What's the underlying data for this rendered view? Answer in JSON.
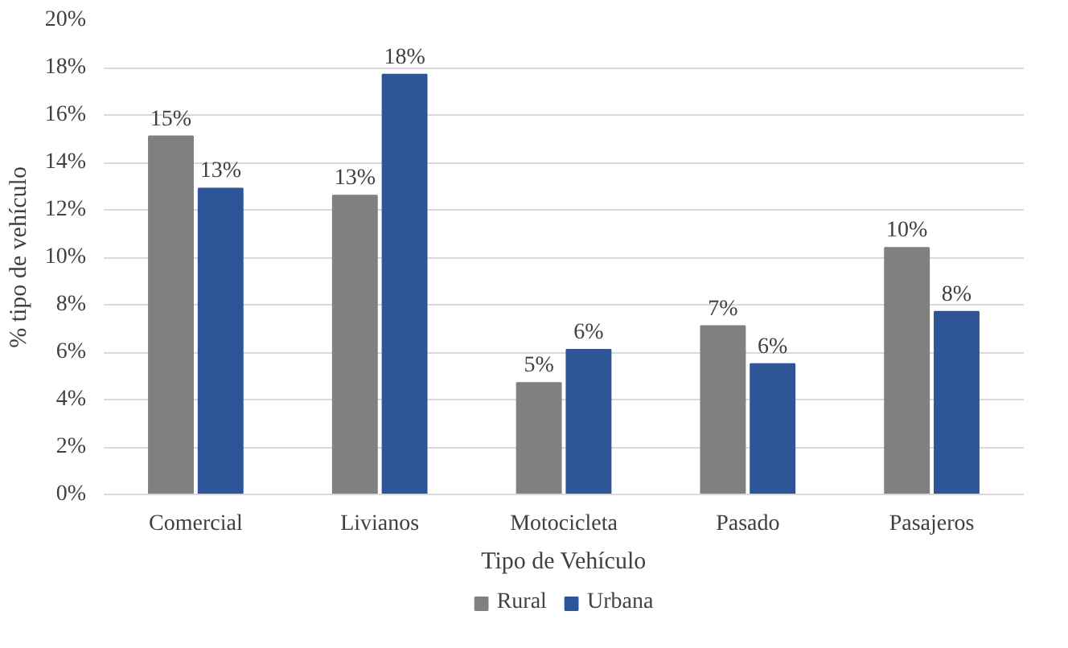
{
  "chart_data": {
    "type": "bar",
    "xlabel": "Tipo de Vehículo",
    "ylabel": "% tipo de vehículo",
    "categories": [
      "Comercial",
      "Livianos",
      "Motocicleta",
      "Pasado",
      "Pasajeros"
    ],
    "series": [
      {
        "name": "Rural",
        "color": "#808080",
        "values": [
          15.1,
          12.6,
          4.7,
          7.1,
          10.4
        ],
        "value_labels": [
          "15%",
          "13%",
          "5%",
          "7%",
          "10%"
        ]
      },
      {
        "name": "Urbana",
        "color": "#2e5597",
        "values": [
          12.9,
          17.7,
          6.1,
          5.5,
          7.7
        ],
        "value_labels": [
          "13%",
          "18%",
          "6%",
          "6%",
          "8%"
        ]
      }
    ],
    "ylim": [
      0,
      20
    ],
    "yticks": [
      {
        "value": 0,
        "label": "0%"
      },
      {
        "value": 2,
        "label": "2%"
      },
      {
        "value": 4,
        "label": "4%"
      },
      {
        "value": 6,
        "label": "6%"
      },
      {
        "value": 8,
        "label": "8%"
      },
      {
        "value": 10,
        "label": "10%"
      },
      {
        "value": 12,
        "label": "12%"
      },
      {
        "value": 14,
        "label": "14%"
      },
      {
        "value": 16,
        "label": "16%"
      },
      {
        "value": 18,
        "label": "18%"
      },
      {
        "value": 20,
        "label": "20%"
      }
    ],
    "grid": "y",
    "legend": "bottom"
  }
}
